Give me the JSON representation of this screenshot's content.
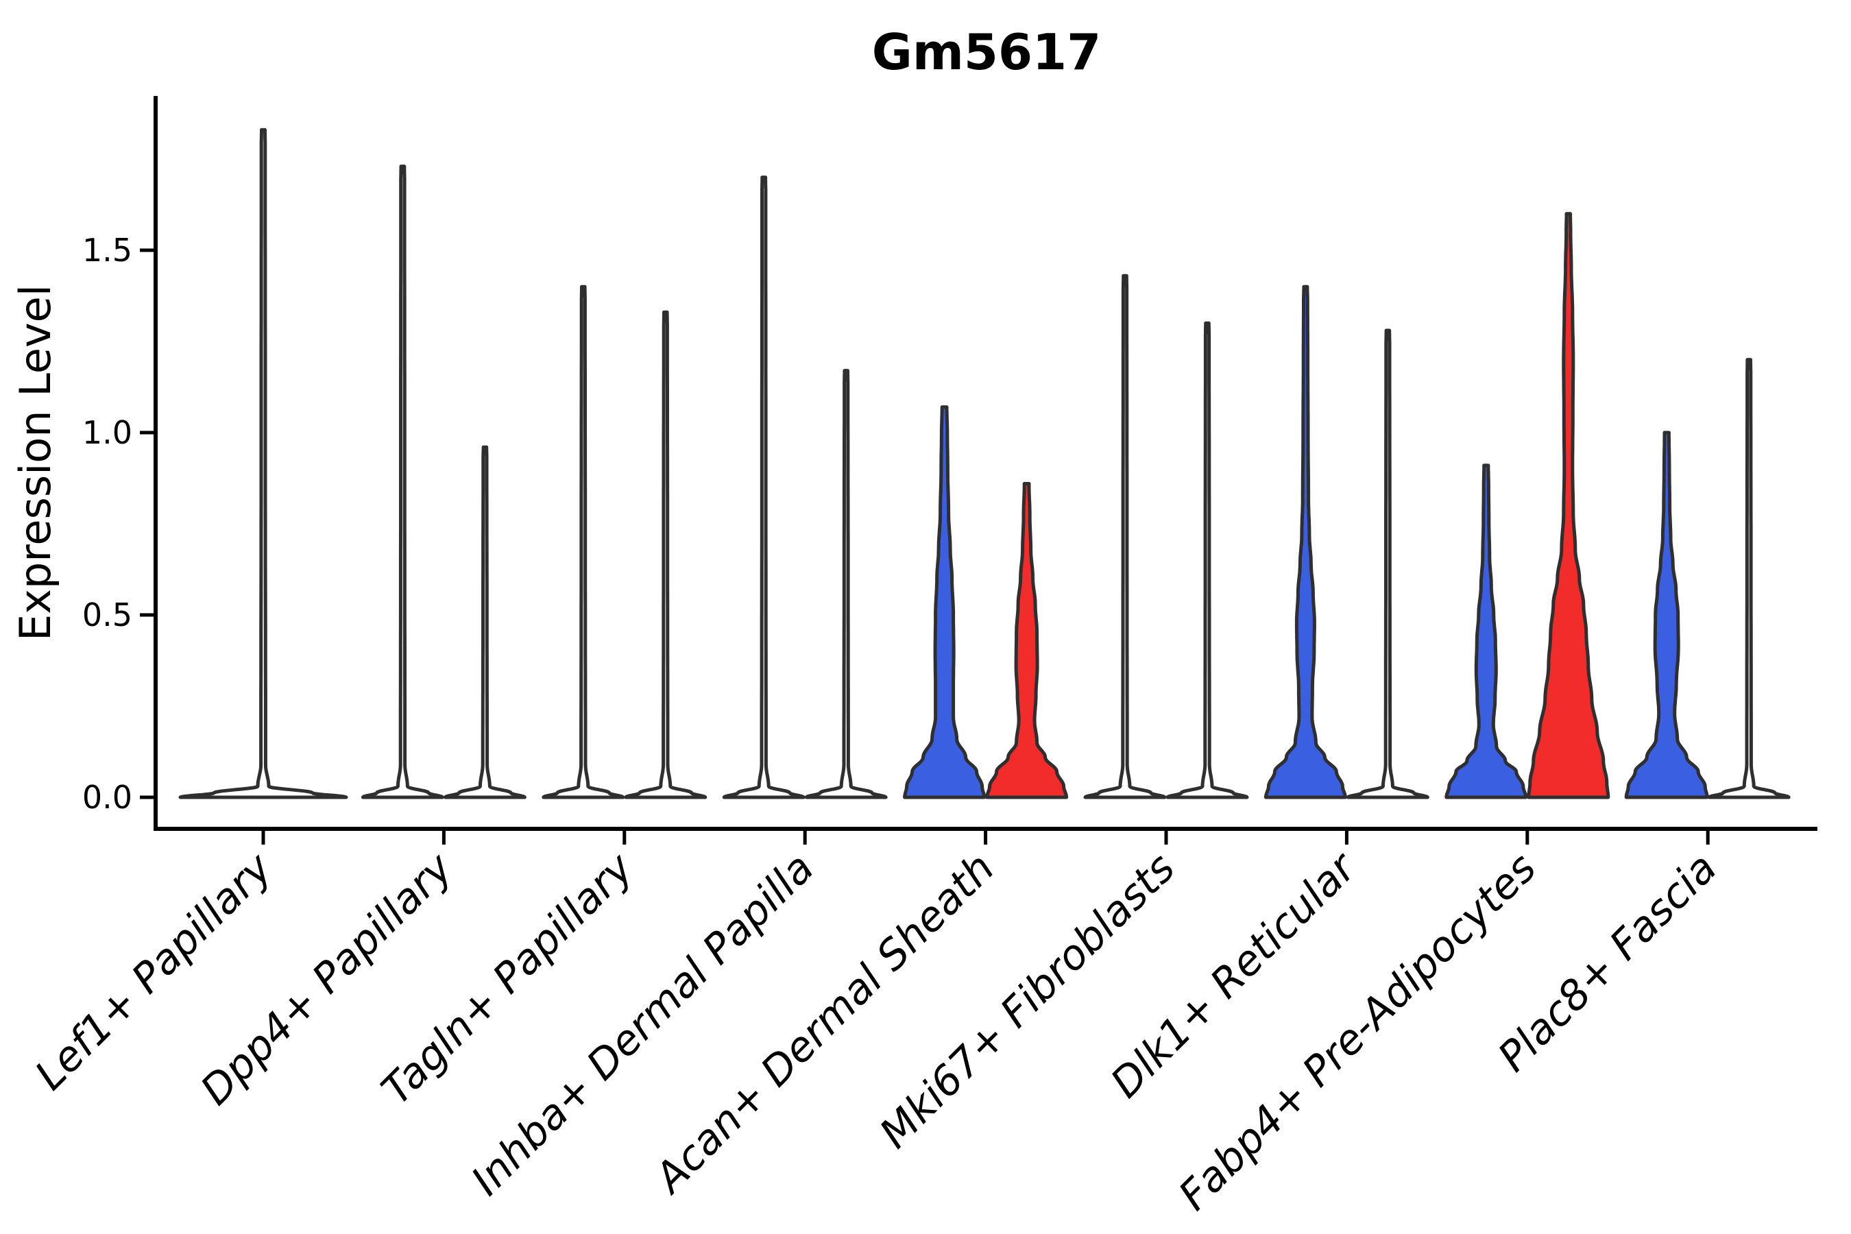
{
  "figure": {
    "title": "Gm5617",
    "ylabel": "Expression Level"
  },
  "colors": {
    "blue": "#3B5FE1",
    "red": "#F22B2B",
    "none": "#FFFFFF",
    "outline": "#2F2F2F",
    "axis": "#000000",
    "background": "#FFFFFF"
  },
  "chart_data": {
    "type": "violin",
    "title": "Gm5617",
    "xlabel": "",
    "ylabel": "Expression Level",
    "ylim": [
      -0.09,
      2.01
    ],
    "grid": false,
    "legend": false,
    "yticks": [
      {
        "label": "0.0",
        "value": 0.0
      },
      {
        "label": "0.5",
        "value": 0.5
      },
      {
        "label": "1.0",
        "value": 1.0
      },
      {
        "label": "1.5",
        "value": 1.5
      }
    ],
    "categories": [
      "Lef1+ Papillary",
      "Dpp4+ Papillary",
      "Tagln+ Papillary",
      "Inhba+ Dermal Papilla",
      "Acan+ Dermal Sheath",
      "Mki67+ Fibroblasts",
      "Dlk1+ Reticular",
      "Fabp4+ Pre-Adipocytes",
      "Plac8+ Fascia"
    ],
    "fill_groups": [
      "blue",
      "red"
    ],
    "profile_note": "width_profile entries are [expression_value, half_width_px]; violins are symmetric, most mass at 0",
    "violins": [
      {
        "category_index": 0,
        "category": "Lef1+ Papillary",
        "position": "center",
        "fill": "none",
        "max_expression": 1.83,
        "width_profile": [
          [
            0,
            121
          ],
          [
            0.012,
            72
          ],
          [
            0.03,
            8
          ],
          [
            0.09,
            3.4
          ],
          [
            1.0,
            3.0
          ],
          [
            1.79,
            2.8
          ],
          [
            1.83,
            2.5
          ]
        ]
      },
      {
        "category_index": 1,
        "category": "Dpp4+ Papillary",
        "position": "left",
        "fill": "none",
        "max_expression": 1.73,
        "width_profile": [
          [
            0,
            58
          ],
          [
            0.012,
            38
          ],
          [
            0.03,
            7
          ],
          [
            0.09,
            3.2
          ],
          [
            0.9,
            2.9
          ],
          [
            1.69,
            2.7
          ],
          [
            1.73,
            2.4
          ]
        ]
      },
      {
        "category_index": 1,
        "category": "Dpp4+ Papillary",
        "position": "right",
        "fill": "none",
        "max_expression": 0.96,
        "width_profile": [
          [
            0,
            58
          ],
          [
            0.012,
            38
          ],
          [
            0.03,
            7
          ],
          [
            0.09,
            3.2
          ],
          [
            0.5,
            2.9
          ],
          [
            0.93,
            2.6
          ],
          [
            0.96,
            2.3
          ]
        ]
      },
      {
        "category_index": 2,
        "category": "Tagln+ Papillary",
        "position": "left",
        "fill": "none",
        "max_expression": 1.4,
        "width_profile": [
          [
            0,
            58
          ],
          [
            0.012,
            38
          ],
          [
            0.03,
            7
          ],
          [
            0.09,
            3.2
          ],
          [
            0.7,
            2.9
          ],
          [
            1.36,
            2.6
          ],
          [
            1.4,
            2.3
          ]
        ]
      },
      {
        "category_index": 2,
        "category": "Tagln+ Papillary",
        "position": "right",
        "fill": "none",
        "max_expression": 1.33,
        "width_profile": [
          [
            0,
            58
          ],
          [
            0.012,
            38
          ],
          [
            0.03,
            7
          ],
          [
            0.09,
            3.2
          ],
          [
            0.7,
            2.9
          ],
          [
            1.29,
            2.6
          ],
          [
            1.33,
            2.3
          ]
        ]
      },
      {
        "category_index": 3,
        "category": "Inhba+ Dermal Papilla",
        "position": "left",
        "fill": "none",
        "max_expression": 1.7,
        "width_profile": [
          [
            0,
            58
          ],
          [
            0.012,
            38
          ],
          [
            0.03,
            7
          ],
          [
            0.09,
            3.2
          ],
          [
            0.85,
            2.9
          ],
          [
            1.66,
            2.7
          ],
          [
            1.7,
            2.4
          ]
        ]
      },
      {
        "category_index": 3,
        "category": "Inhba+ Dermal Papilla",
        "position": "right",
        "fill": "none",
        "max_expression": 1.17,
        "width_profile": [
          [
            0,
            58
          ],
          [
            0.012,
            38
          ],
          [
            0.03,
            7
          ],
          [
            0.09,
            3.2
          ],
          [
            0.6,
            2.9
          ],
          [
            1.13,
            2.6
          ],
          [
            1.17,
            2.3
          ]
        ]
      },
      {
        "category_index": 4,
        "category": "Acan+ Dermal Sheath",
        "position": "left",
        "fill": "blue",
        "max_expression": 1.07,
        "width_profile": [
          [
            0,
            58
          ],
          [
            0.03,
            55
          ],
          [
            0.07,
            47
          ],
          [
            0.11,
            31
          ],
          [
            0.16,
            18
          ],
          [
            0.22,
            13
          ],
          [
            0.3,
            13
          ],
          [
            0.4,
            13.5
          ],
          [
            0.5,
            13
          ],
          [
            0.6,
            11
          ],
          [
            0.68,
            8.5
          ],
          [
            0.78,
            6
          ],
          [
            0.9,
            4.8
          ],
          [
            1.0,
            4.2
          ],
          [
            1.07,
            3.4
          ]
        ]
      },
      {
        "category_index": 4,
        "category": "Acan+ Dermal Sheath",
        "position": "right",
        "fill": "red",
        "max_expression": 0.86,
        "width_profile": [
          [
            0,
            58
          ],
          [
            0.03,
            54
          ],
          [
            0.07,
            44
          ],
          [
            0.11,
            27
          ],
          [
            0.15,
            15
          ],
          [
            0.21,
            11.5
          ],
          [
            0.28,
            13.5
          ],
          [
            0.36,
            15.5
          ],
          [
            0.45,
            15
          ],
          [
            0.53,
            12.5
          ],
          [
            0.6,
            9
          ],
          [
            0.68,
            6
          ],
          [
            0.77,
            4.6
          ],
          [
            0.86,
            3.4
          ]
        ]
      },
      {
        "category_index": 5,
        "category": "Mki67+ Fibroblasts",
        "position": "left",
        "fill": "none",
        "max_expression": 1.43,
        "width_profile": [
          [
            0,
            58
          ],
          [
            0.012,
            38
          ],
          [
            0.03,
            7
          ],
          [
            0.09,
            3.2
          ],
          [
            0.75,
            2.9
          ],
          [
            1.39,
            2.6
          ],
          [
            1.43,
            2.3
          ]
        ]
      },
      {
        "category_index": 5,
        "category": "Mki67+ Fibroblasts",
        "position": "right",
        "fill": "none",
        "max_expression": 1.3,
        "width_profile": [
          [
            0,
            58
          ],
          [
            0.012,
            38
          ],
          [
            0.03,
            7
          ],
          [
            0.09,
            3.2
          ],
          [
            0.68,
            2.9
          ],
          [
            1.26,
            2.6
          ],
          [
            1.3,
            2.3
          ]
        ]
      },
      {
        "category_index": 6,
        "category": "Dlk1+ Reticular",
        "position": "left",
        "fill": "blue",
        "max_expression": 1.4,
        "width_profile": [
          [
            0,
            58
          ],
          [
            0.03,
            54
          ],
          [
            0.07,
            45
          ],
          [
            0.11,
            28
          ],
          [
            0.15,
            15
          ],
          [
            0.22,
            9.5
          ],
          [
            0.3,
            10
          ],
          [
            0.4,
            12.5
          ],
          [
            0.48,
            13
          ],
          [
            0.56,
            11
          ],
          [
            0.64,
            8
          ],
          [
            0.72,
            5.5
          ],
          [
            0.82,
            4.2
          ],
          [
            1.0,
            3.6
          ],
          [
            1.2,
            3.2
          ],
          [
            1.36,
            2.9
          ],
          [
            1.4,
            2.5
          ]
        ]
      },
      {
        "category_index": 6,
        "category": "Dlk1+ Reticular",
        "position": "right",
        "fill": "none",
        "max_expression": 1.28,
        "width_profile": [
          [
            0,
            58
          ],
          [
            0.012,
            38
          ],
          [
            0.03,
            7
          ],
          [
            0.09,
            3.2
          ],
          [
            0.67,
            2.9
          ],
          [
            1.24,
            2.6
          ],
          [
            1.28,
            2.3
          ]
        ]
      },
      {
        "category_index": 7,
        "category": "Fabp4+ Pre-Adipocytes",
        "position": "left",
        "fill": "blue",
        "max_expression": 0.91,
        "width_profile": [
          [
            0,
            58
          ],
          [
            0.03,
            54
          ],
          [
            0.07,
            44
          ],
          [
            0.1,
            28
          ],
          [
            0.14,
            15
          ],
          [
            0.2,
            10.5
          ],
          [
            0.27,
            13
          ],
          [
            0.35,
            14.5
          ],
          [
            0.43,
            13.5
          ],
          [
            0.5,
            11
          ],
          [
            0.58,
            7.5
          ],
          [
            0.66,
            5
          ],
          [
            0.76,
            4
          ],
          [
            0.85,
            3.6
          ],
          [
            0.91,
            3.1
          ]
        ]
      },
      {
        "category_index": 7,
        "category": "Fabp4+ Pre-Adipocytes",
        "position": "right",
        "fill": "red",
        "max_expression": 1.6,
        "width_profile": [
          [
            0,
            58
          ],
          [
            0.04,
            56
          ],
          [
            0.1,
            51
          ],
          [
            0.18,
            42
          ],
          [
            0.27,
            34
          ],
          [
            0.36,
            29
          ],
          [
            0.45,
            26
          ],
          [
            0.53,
            22
          ],
          [
            0.6,
            16
          ],
          [
            0.68,
            10
          ],
          [
            0.78,
            7
          ],
          [
            0.9,
            6
          ],
          [
            1.05,
            6.5
          ],
          [
            1.2,
            7
          ],
          [
            1.33,
            6
          ],
          [
            1.45,
            4.2
          ],
          [
            1.55,
            3.2
          ],
          [
            1.6,
            2.8
          ]
        ]
      },
      {
        "category_index": 8,
        "category": "Plac8+ Fascia",
        "position": "left",
        "fill": "blue",
        "max_expression": 1.0,
        "width_profile": [
          [
            0,
            59
          ],
          [
            0.03,
            56
          ],
          [
            0.07,
            46
          ],
          [
            0.11,
            29
          ],
          [
            0.16,
            15.5
          ],
          [
            0.23,
            11.5
          ],
          [
            0.31,
            14
          ],
          [
            0.41,
            17
          ],
          [
            0.5,
            16.5
          ],
          [
            0.57,
            13.5
          ],
          [
            0.64,
            9
          ],
          [
            0.71,
            5.8
          ],
          [
            0.8,
            4.4
          ],
          [
            0.9,
            3.8
          ],
          [
            1.0,
            3.2
          ]
        ]
      },
      {
        "category_index": 8,
        "category": "Plac8+ Fascia",
        "position": "right",
        "fill": "none",
        "max_expression": 1.2,
        "width_profile": [
          [
            0,
            58
          ],
          [
            0.012,
            38
          ],
          [
            0.03,
            7
          ],
          [
            0.09,
            3.2
          ],
          [
            0.63,
            2.9
          ],
          [
            1.16,
            2.6
          ],
          [
            1.2,
            2.3
          ]
        ]
      }
    ]
  }
}
